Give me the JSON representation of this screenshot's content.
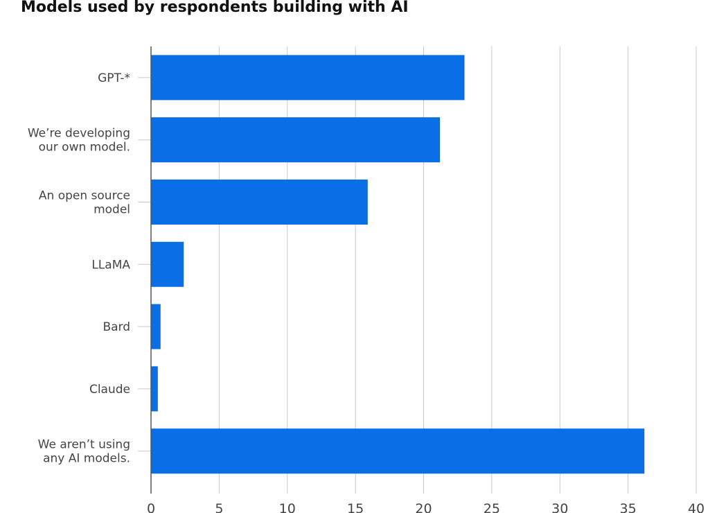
{
  "chart_data": {
    "type": "bar",
    "orientation": "horizontal",
    "title": "Models used by respondents building with AI",
    "xlabel": "",
    "ylabel": "",
    "categories": [
      [
        "GPT-*"
      ],
      [
        "We’re developing",
        "our own model."
      ],
      [
        "An open source",
        "model"
      ],
      [
        "LLaMA"
      ],
      [
        "Bard"
      ],
      [
        "Claude"
      ],
      [
        "We aren’t using",
        "any AI models."
      ]
    ],
    "values": [
      23.0,
      21.2,
      15.9,
      2.4,
      0.7,
      0.5,
      36.2
    ],
    "xlim": [
      0,
      40
    ],
    "xticks": [
      "0",
      "5",
      "10",
      "15",
      "20",
      "25",
      "30",
      "35",
      "40"
    ],
    "grid": "vertical",
    "legend": "none",
    "colors": {
      "bar": "#0A6EE6",
      "grid": "#c8c8c8",
      "axis": "#555555",
      "text": "#444444",
      "title": "#111111"
    }
  }
}
